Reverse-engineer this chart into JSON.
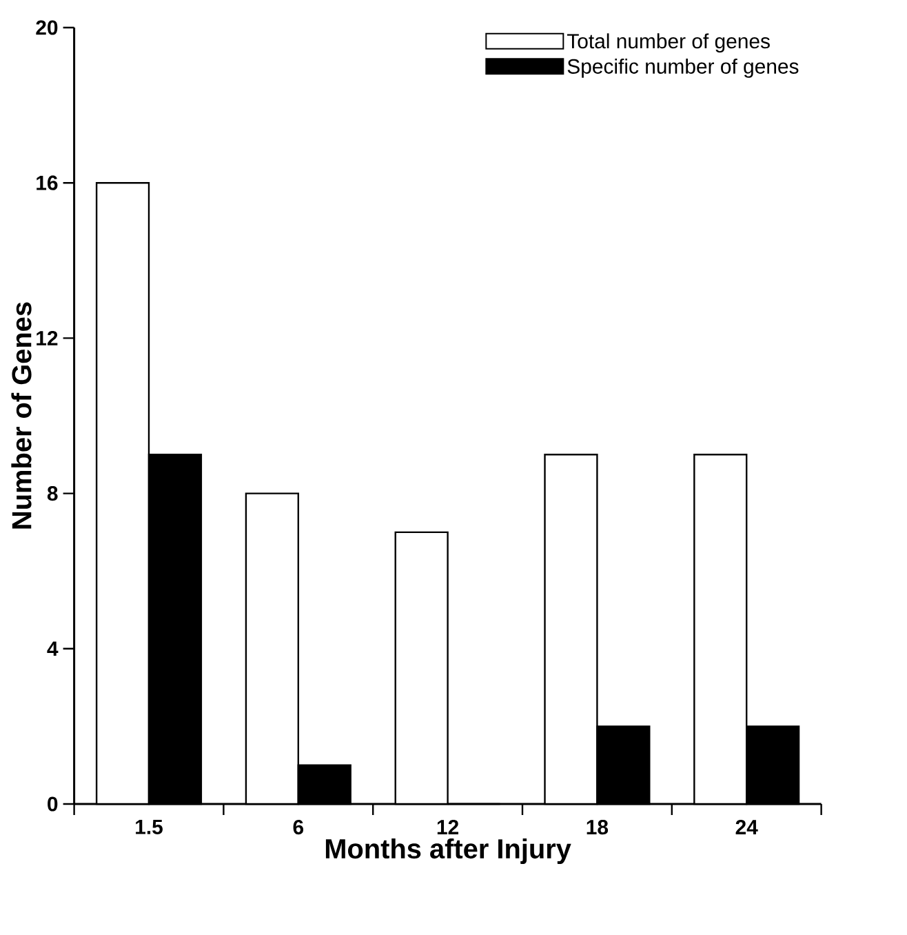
{
  "chart_data": {
    "type": "bar",
    "xlabel": "Months after Injury",
    "ylabel": "Number of Genes",
    "categories": [
      "1.5",
      "6",
      "12",
      "18",
      "24"
    ],
    "series": [
      {
        "name": "Total number of genes",
        "color": "#ffffff",
        "values": [
          16,
          8,
          7,
          9,
          9
        ]
      },
      {
        "name": "Specific number of genes",
        "color": "#000000",
        "values": [
          9,
          1,
          0,
          2,
          2
        ]
      }
    ],
    "ylim": [
      0,
      20
    ],
    "yticks": [
      0,
      4,
      8,
      12,
      16,
      20
    ],
    "grid": false,
    "legend": "top right"
  }
}
